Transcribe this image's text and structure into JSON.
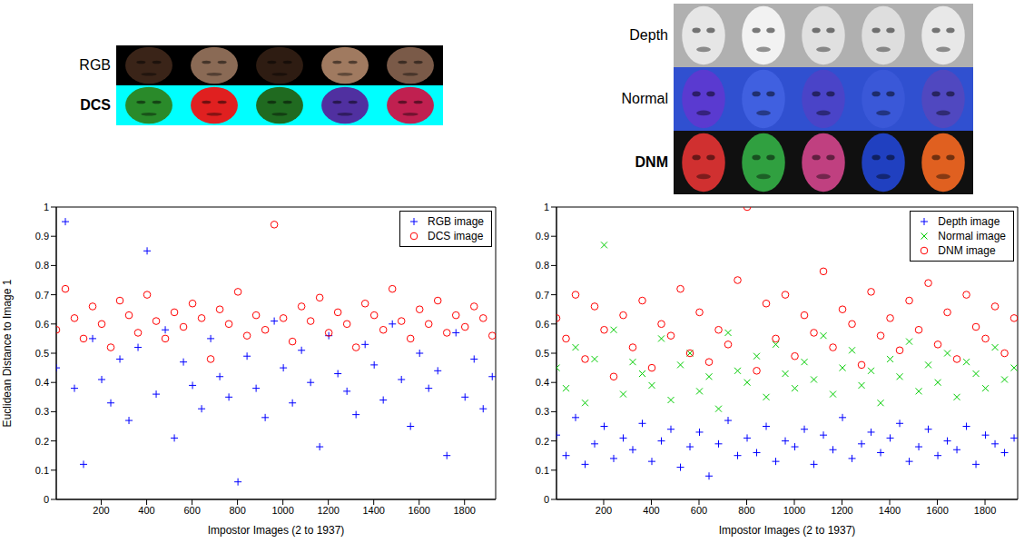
{
  "chart_data": [
    {
      "type": "scatter",
      "annotations": [
        "RGB",
        "DCS"
      ],
      "x_label": "Impostor Images (2 to 1937)",
      "y_label": "Euclidean Distance to Image 1",
      "x": [
        2,
        42,
        82,
        122,
        162,
        202,
        242,
        282,
        322,
        362,
        402,
        442,
        482,
        522,
        562,
        602,
        642,
        682,
        722,
        762,
        802,
        842,
        882,
        922,
        962,
        1002,
        1042,
        1082,
        1122,
        1162,
        1202,
        1242,
        1282,
        1322,
        1362,
        1402,
        1442,
        1482,
        1522,
        1562,
        1602,
        1642,
        1682,
        1722,
        1762,
        1802,
        1842,
        1882,
        1922
      ],
      "series": [
        {
          "name": "RGB image",
          "color": "#0000ff",
          "marker": "plus",
          "values": [
            0.45,
            0.95,
            0.38,
            0.12,
            0.55,
            0.41,
            0.33,
            0.48,
            0.27,
            0.52,
            0.85,
            0.36,
            0.58,
            0.21,
            0.47,
            0.39,
            0.31,
            0.55,
            0.42,
            0.35,
            0.06,
            0.49,
            0.38,
            0.28,
            0.61,
            0.45,
            0.33,
            0.51,
            0.4,
            0.18,
            0.56,
            0.43,
            0.37,
            0.29,
            0.53,
            0.46,
            0.34,
            0.6,
            0.41,
            0.25,
            0.5,
            0.38,
            0.44,
            0.15,
            0.57,
            0.35,
            0.48,
            0.31,
            0.42
          ]
        },
        {
          "name": "DCS image",
          "color": "#ff0000",
          "marker": "circle",
          "values": [
            0.58,
            0.72,
            0.62,
            0.55,
            0.66,
            0.6,
            0.52,
            0.68,
            0.63,
            0.57,
            0.7,
            0.61,
            0.55,
            0.64,
            0.59,
            0.67,
            0.62,
            0.48,
            0.65,
            0.6,
            0.71,
            0.56,
            0.63,
            0.58,
            0.94,
            0.62,
            0.54,
            0.66,
            0.61,
            0.69,
            0.57,
            0.64,
            0.6,
            0.52,
            0.67,
            0.63,
            0.58,
            0.72,
            0.61,
            0.55,
            0.65,
            0.6,
            0.68,
            0.57,
            0.63,
            0.59,
            0.66,
            0.62,
            0.56
          ]
        }
      ],
      "xlim": [
        2,
        1937
      ],
      "xticks": [
        200,
        400,
        600,
        800,
        1000,
        1200,
        1400,
        1600,
        1800
      ],
      "ylim": [
        0,
        1
      ],
      "yticks": [
        0,
        0.1,
        0.2,
        0.3,
        0.4,
        0.5,
        0.6,
        0.7,
        0.8,
        0.9,
        1
      ],
      "legend": "upper right"
    },
    {
      "type": "scatter",
      "annotations": [
        "Depth",
        "Normal",
        "DNM"
      ],
      "x_label": "Impostor Images (2 to 1937)",
      "x": [
        2,
        42,
        82,
        122,
        162,
        202,
        242,
        282,
        322,
        362,
        402,
        442,
        482,
        522,
        562,
        602,
        642,
        682,
        722,
        762,
        802,
        842,
        882,
        922,
        962,
        1002,
        1042,
        1082,
        1122,
        1162,
        1202,
        1242,
        1282,
        1322,
        1362,
        1402,
        1442,
        1482,
        1522,
        1562,
        1602,
        1642,
        1682,
        1722,
        1762,
        1802,
        1842,
        1882,
        1922
      ],
      "series": [
        {
          "name": "Depth image",
          "color": "#0000ff",
          "marker": "plus",
          "values": [
            0.22,
            0.15,
            0.28,
            0.12,
            0.19,
            0.25,
            0.14,
            0.21,
            0.17,
            0.26,
            0.13,
            0.2,
            0.24,
            0.11,
            0.18,
            0.23,
            0.08,
            0.19,
            0.27,
            0.15,
            0.21,
            0.16,
            0.25,
            0.13,
            0.2,
            0.18,
            0.24,
            0.12,
            0.22,
            0.17,
            0.28,
            0.14,
            0.19,
            0.23,
            0.16,
            0.21,
            0.26,
            0.13,
            0.18,
            0.24,
            0.15,
            0.2,
            0.17,
            0.25,
            0.12,
            0.22,
            0.19,
            0.16,
            0.21
          ]
        },
        {
          "name": "Normal image",
          "color": "#00cc00",
          "marker": "x",
          "values": [
            0.45,
            0.38,
            0.52,
            0.33,
            0.48,
            0.87,
            0.58,
            0.36,
            0.47,
            0.43,
            0.39,
            0.55,
            0.34,
            0.46,
            0.5,
            0.37,
            0.42,
            0.31,
            0.57,
            0.44,
            0.4,
            0.49,
            0.35,
            0.53,
            0.43,
            0.38,
            0.47,
            0.41,
            0.56,
            0.36,
            0.45,
            0.51,
            0.39,
            0.44,
            0.33,
            0.48,
            0.42,
            0.54,
            0.37,
            0.46,
            0.4,
            0.5,
            0.35,
            0.47,
            0.43,
            0.38,
            0.52,
            0.41,
            0.45
          ]
        },
        {
          "name": "DNM image",
          "color": "#ff0000",
          "marker": "circle",
          "values": [
            0.62,
            0.55,
            0.7,
            0.48,
            0.66,
            0.58,
            0.42,
            0.63,
            0.52,
            0.68,
            0.45,
            0.6,
            0.56,
            0.72,
            0.5,
            0.64,
            0.47,
            0.58,
            0.53,
            0.75,
            1.0,
            0.44,
            0.67,
            0.55,
            0.7,
            0.49,
            0.63,
            0.57,
            0.78,
            0.52,
            0.65,
            0.6,
            0.46,
            0.71,
            0.56,
            0.62,
            0.51,
            0.68,
            0.58,
            0.74,
            0.53,
            0.64,
            0.48,
            0.7,
            0.59,
            0.55,
            0.66,
            0.5,
            0.62
          ]
        }
      ],
      "xlim": [
        2,
        1937
      ],
      "xticks": [
        200,
        400,
        600,
        800,
        1000,
        1200,
        1400,
        1600,
        1800
      ],
      "ylim": [
        0,
        1
      ],
      "yticks": [
        0,
        0.1,
        0.2,
        0.3,
        0.4,
        0.5,
        0.6,
        0.7,
        0.8,
        0.9,
        1
      ],
      "legend": "upper right"
    }
  ]
}
